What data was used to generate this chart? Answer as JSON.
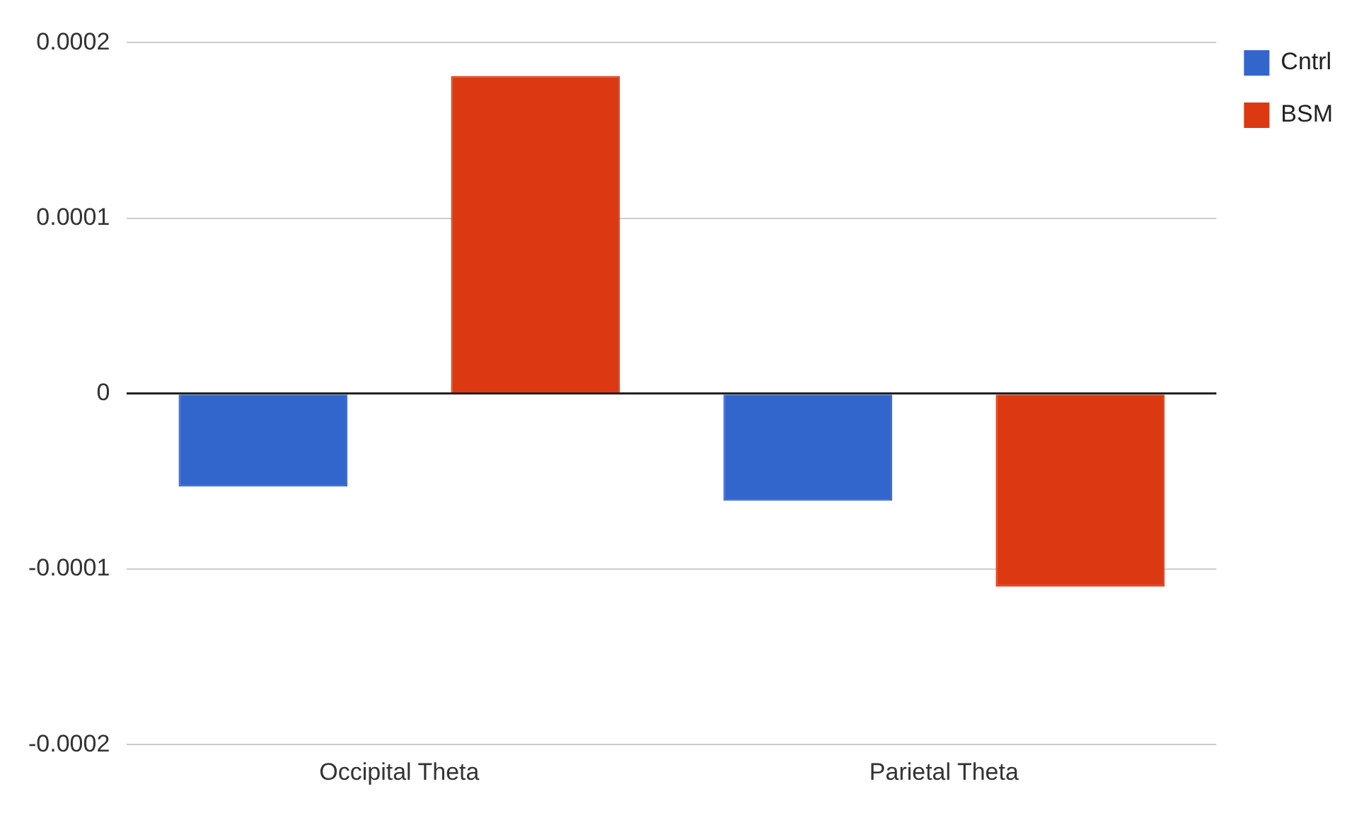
{
  "chart_data": {
    "type": "bar",
    "categories": [
      "Occipital Theta",
      "Parietal Theta"
    ],
    "series": [
      {
        "name": "Cntrl",
        "color": "#3366cc",
        "values": [
          -5.3e-05,
          -6.1e-05
        ]
      },
      {
        "name": "BSM",
        "color": "#dc3912",
        "values": [
          0.000181,
          -0.00011
        ]
      }
    ],
    "ylim": [
      -0.0002,
      0.0002
    ],
    "yticks": [
      -0.0002,
      -0.0001,
      0,
      0.0001,
      0.0002
    ],
    "grid": "y",
    "legend": "top right"
  }
}
